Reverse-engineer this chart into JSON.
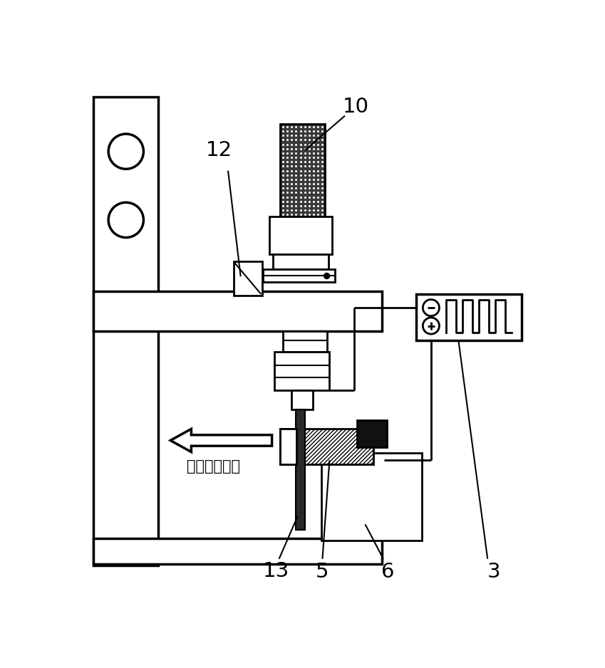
{
  "bg_color": "#ffffff",
  "line_color": "#000000",
  "label_12": "12",
  "label_10": "10",
  "label_13": "13",
  "label_5": "5",
  "label_6": "6",
  "label_3": "3",
  "feed_direction_text": "工件进给方向",
  "figsize": [
    8.49,
    9.38
  ],
  "dpi": 100
}
